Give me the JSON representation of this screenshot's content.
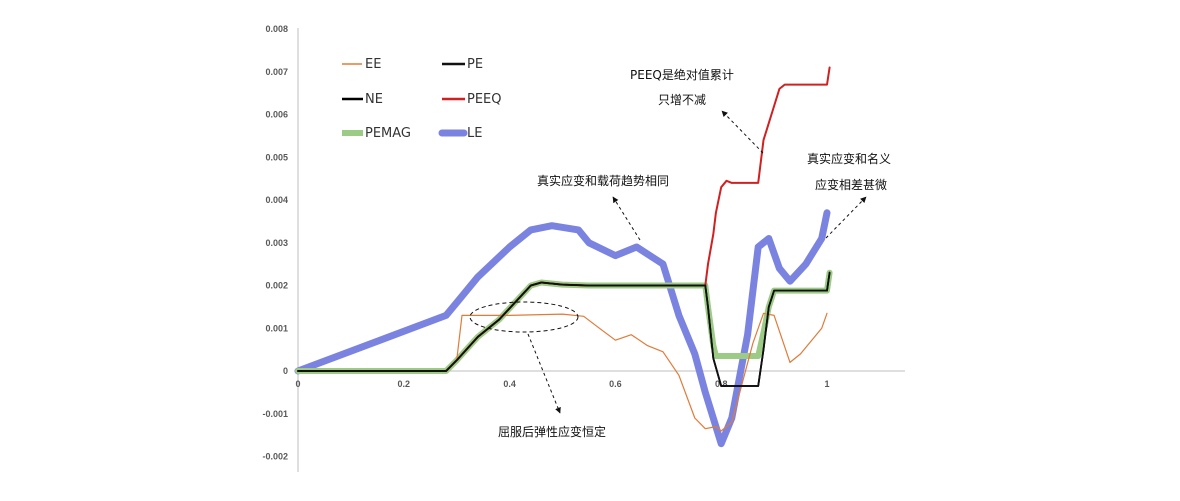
{
  "chart_data": {
    "type": "line",
    "title": "",
    "xlabel": "",
    "ylabel": "",
    "xlim": [
      0,
      1.15
    ],
    "ylim": [
      -0.002,
      0.008
    ],
    "x_ticks": [
      0,
      0.2,
      0.4,
      0.6,
      0.8,
      1
    ],
    "x_tick_labels": [
      "0",
      "0.2",
      "0.4",
      "0.6",
      "0.8",
      "1"
    ],
    "y_ticks": [
      -0.002,
      -0.001,
      0,
      0.001,
      0.002,
      0.003,
      0.004,
      0.005,
      0.006,
      0.007,
      0.008
    ],
    "y_tick_labels": [
      "-0.002",
      "-0.001",
      "0",
      "0.001",
      "0.002",
      "0.003",
      "0.004",
      "0.005",
      "0.006",
      "0.007",
      "0.008"
    ],
    "grid": false,
    "legend_position": "top-left",
    "series": [
      {
        "name": "EE",
        "color": "#E07B39",
        "width": 1.2,
        "points": [
          [
            0,
            0
          ],
          [
            0.28,
            0
          ],
          [
            0.3,
            0.00025
          ],
          [
            0.31,
            0.0013
          ],
          [
            0.4,
            0.0013
          ],
          [
            0.5,
            0.00133
          ],
          [
            0.54,
            0.00128
          ],
          [
            0.57,
            0.001
          ],
          [
            0.6,
            0.00072
          ],
          [
            0.63,
            0.00085
          ],
          [
            0.66,
            0.0006
          ],
          [
            0.69,
            0.00045
          ],
          [
            0.72,
            -0.0001
          ],
          [
            0.75,
            -0.0011
          ],
          [
            0.77,
            -0.00135
          ],
          [
            0.79,
            -0.0013
          ],
          [
            0.8,
            -0.0014
          ],
          [
            0.82,
            -0.0012
          ],
          [
            0.86,
            0.00065
          ],
          [
            0.88,
            0.00135
          ],
          [
            0.9,
            0.0013
          ],
          [
            0.93,
            0.0002
          ],
          [
            0.95,
            0.0004
          ],
          [
            0.99,
            0.001
          ],
          [
            1.0,
            0.00135
          ]
        ]
      },
      {
        "name": "PE",
        "color": "#111111",
        "width": 1.8,
        "points": [
          [
            0,
            0
          ],
          [
            0.28,
            0
          ],
          [
            0.3,
            0.00025
          ],
          [
            0.34,
            0.0008
          ],
          [
            0.38,
            0.0012
          ],
          [
            0.41,
            0.0016
          ],
          [
            0.44,
            0.002
          ],
          [
            0.46,
            0.00207
          ],
          [
            0.5,
            0.00202
          ],
          [
            0.55,
            0.002
          ],
          [
            0.77,
            0.002
          ],
          [
            0.775,
            0.0015
          ],
          [
            0.785,
            0.0003
          ],
          [
            0.8,
            -0.00035
          ],
          [
            0.87,
            -0.00035
          ],
          [
            0.88,
            0.0005
          ],
          [
            0.89,
            0.0015
          ],
          [
            0.9,
            0.00188
          ],
          [
            1.0,
            0.00188
          ],
          [
            1.005,
            0.0023
          ]
        ]
      },
      {
        "name": "NE",
        "color": "#000000",
        "width": 1.8,
        "points": [
          [
            0,
            0
          ],
          [
            0.28,
            0
          ],
          [
            0.3,
            0.00025
          ],
          [
            0.34,
            0.0008
          ],
          [
            0.38,
            0.0012
          ],
          [
            0.41,
            0.0016
          ],
          [
            0.44,
            0.002
          ],
          [
            0.46,
            0.00207
          ],
          [
            0.5,
            0.00202
          ],
          [
            0.55,
            0.002
          ],
          [
            0.77,
            0.002
          ],
          [
            0.775,
            0.0015
          ],
          [
            0.785,
            0.0003
          ],
          [
            0.8,
            -0.00035
          ],
          [
            0.87,
            -0.00035
          ],
          [
            0.88,
            0.0005
          ],
          [
            0.89,
            0.0015
          ],
          [
            0.9,
            0.00188
          ],
          [
            1.0,
            0.00188
          ],
          [
            1.005,
            0.0023
          ]
        ]
      },
      {
        "name": "PEEQ",
        "color": "#D02020",
        "width": 2,
        "points": [
          [
            0,
            0
          ],
          [
            0.28,
            0
          ],
          [
            0.3,
            0.00025
          ],
          [
            0.34,
            0.0008
          ],
          [
            0.38,
            0.0012
          ],
          [
            0.41,
            0.0016
          ],
          [
            0.44,
            0.002
          ],
          [
            0.46,
            0.00207
          ],
          [
            0.5,
            0.00202
          ],
          [
            0.55,
            0.002
          ],
          [
            0.77,
            0.002
          ],
          [
            0.775,
            0.0025
          ],
          [
            0.785,
            0.0032
          ],
          [
            0.79,
            0.0037
          ],
          [
            0.8,
            0.0043
          ],
          [
            0.81,
            0.00445
          ],
          [
            0.82,
            0.0044
          ],
          [
            0.87,
            0.0044
          ],
          [
            0.88,
            0.0054
          ],
          [
            0.89,
            0.0058
          ],
          [
            0.9,
            0.0062
          ],
          [
            0.91,
            0.0066
          ],
          [
            0.92,
            0.0067
          ],
          [
            0.99,
            0.0067
          ],
          [
            1.0,
            0.0067
          ],
          [
            1.005,
            0.0071
          ]
        ]
      },
      {
        "name": "PEMAG",
        "color": "#9CCB86",
        "width": 6,
        "points": [
          [
            0,
            0
          ],
          [
            0.28,
            0
          ],
          [
            0.3,
            0.00025
          ],
          [
            0.34,
            0.0008
          ],
          [
            0.38,
            0.0012
          ],
          [
            0.41,
            0.0016
          ],
          [
            0.44,
            0.002
          ],
          [
            0.46,
            0.00207
          ],
          [
            0.5,
            0.00202
          ],
          [
            0.55,
            0.002
          ],
          [
            0.77,
            0.002
          ],
          [
            0.775,
            0.0015
          ],
          [
            0.785,
            0.0006
          ],
          [
            0.79,
            0.00035
          ],
          [
            0.87,
            0.00035
          ],
          [
            0.88,
            0.0009
          ],
          [
            0.89,
            0.0015
          ],
          [
            0.9,
            0.00188
          ],
          [
            1.0,
            0.00188
          ],
          [
            1.005,
            0.0023
          ]
        ]
      },
      {
        "name": "LE",
        "color": "#7B83E0",
        "width": 7,
        "points": [
          [
            0,
            0
          ],
          [
            0.28,
            0.0013
          ],
          [
            0.3,
            0.0016
          ],
          [
            0.34,
            0.0022
          ],
          [
            0.4,
            0.0029
          ],
          [
            0.44,
            0.0033
          ],
          [
            0.48,
            0.0034
          ],
          [
            0.53,
            0.0033
          ],
          [
            0.55,
            0.003
          ],
          [
            0.6,
            0.0027
          ],
          [
            0.64,
            0.0029
          ],
          [
            0.69,
            0.0025
          ],
          [
            0.72,
            0.0013
          ],
          [
            0.75,
            0.0004
          ],
          [
            0.77,
            -0.0005
          ],
          [
            0.8,
            -0.0017
          ],
          [
            0.82,
            -0.0011
          ],
          [
            0.85,
            0.00085
          ],
          [
            0.87,
            0.0029
          ],
          [
            0.89,
            0.0031
          ],
          [
            0.91,
            0.0024
          ],
          [
            0.93,
            0.0021
          ],
          [
            0.96,
            0.0025
          ],
          [
            0.99,
            0.0031
          ],
          [
            1.0,
            0.0037
          ]
        ]
      }
    ],
    "annotations": [
      {
        "lines": [
          "PEEQ是绝对值累计",
          "只增不减"
        ]
      },
      {
        "lines": [
          "真实应变和名义",
          "应变相差甚微"
        ]
      },
      {
        "lines": [
          "真实应变和载荷趋势相同"
        ]
      },
      {
        "lines": [
          "屈服后弹性应变恒定"
        ]
      }
    ]
  }
}
